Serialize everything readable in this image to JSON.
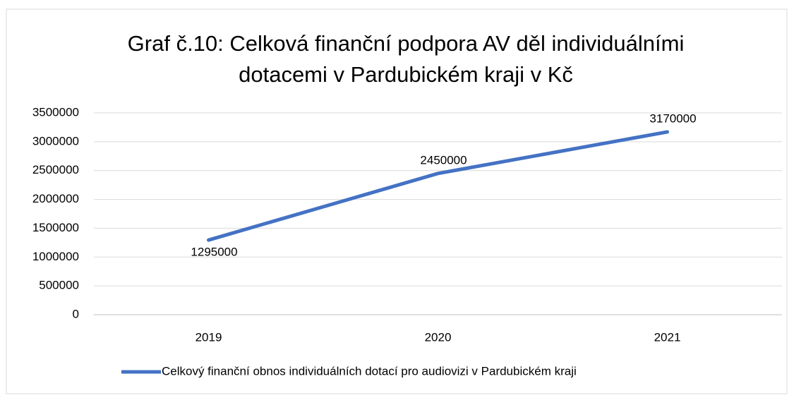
{
  "chart_data": {
    "type": "line",
    "title": [
      "Graf č.10: Celková finanční podpora AV děl individuálními",
      "dotacemi v Pardubickém kraji v Kč"
    ],
    "categories": [
      "2019",
      "2020",
      "2021"
    ],
    "series": [
      {
        "name": "Celkový finanční obnos individuálních dotací pro audiovizi v Pardubickém kraji",
        "color": "#4472c4",
        "values": [
          1295000,
          2450000,
          3170000
        ]
      }
    ],
    "ylim": [
      0,
      3500000
    ],
    "yticks": [
      0,
      500000,
      1000000,
      1500000,
      2000000,
      2500000,
      3000000,
      3500000
    ],
    "grid": true,
    "legend": "bottom"
  }
}
